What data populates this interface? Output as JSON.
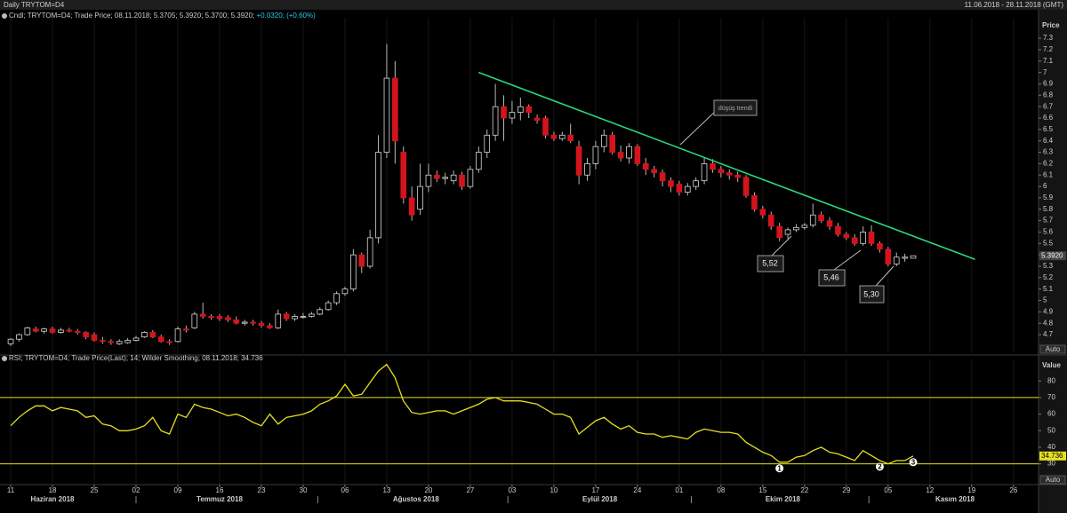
{
  "header": {
    "title": "Daily TRYTOM=D4",
    "date_range": "11.06.2018 - 28.11.2018 (GMT)"
  },
  "chart_data": [
    {
      "type": "candlestick",
      "legend": "Cndl; TRYTOM=D4; Trade Price; 08.11.2018; 5.3705; 5.3920; 5.3700; 5.3920;",
      "legend_change": "+0.0320; (+0.60%)",
      "axis_title": "Price",
      "scale_button": "Auto",
      "up_color": "#000000",
      "up_stroke": "#d8d8d8",
      "down_color": "#d4141c",
      "wick_color": "#b8b8b8",
      "xlim": [
        -1.28,
        123
      ],
      "ylim": [
        4.537,
        7.48
      ],
      "yticks": [
        7.3,
        7.2,
        7.1,
        7,
        6.9,
        6.8,
        6.7,
        6.6,
        6.5,
        6.4,
        6.3,
        6.2,
        6.1,
        6,
        5.9,
        5.8,
        5.7,
        5.6,
        5.5,
        5.4,
        5.3,
        5.2,
        5.1,
        5,
        4.9,
        4.8,
        4.7
      ],
      "last_price": 5.392,
      "last_price_label": "5.3920",
      "ohlc": [
        [
          4.62,
          4.67,
          4.6,
          4.66
        ],
        [
          4.66,
          4.71,
          4.64,
          4.7
        ],
        [
          4.7,
          4.77,
          4.69,
          4.76
        ],
        [
          4.75,
          4.77,
          4.72,
          4.73
        ],
        [
          4.73,
          4.76,
          4.71,
          4.75
        ],
        [
          4.75,
          4.77,
          4.71,
          4.72
        ],
        [
          4.72,
          4.76,
          4.71,
          4.74
        ],
        [
          4.74,
          4.76,
          4.72,
          4.73
        ],
        [
          4.73,
          4.75,
          4.7,
          4.72
        ],
        [
          4.72,
          4.73,
          4.66,
          4.68
        ],
        [
          4.7,
          4.72,
          4.64,
          4.65
        ],
        [
          4.65,
          4.68,
          4.62,
          4.64
        ],
        [
          4.64,
          4.66,
          4.61,
          4.63
        ],
        [
          4.62,
          4.66,
          4.61,
          4.64
        ],
        [
          4.63,
          4.67,
          4.62,
          4.65
        ],
        [
          4.65,
          4.69,
          4.64,
          4.67
        ],
        [
          4.68,
          4.73,
          4.67,
          4.72
        ],
        [
          4.72,
          4.74,
          4.67,
          4.68
        ],
        [
          4.68,
          4.7,
          4.63,
          4.64
        ],
        [
          4.64,
          4.66,
          4.61,
          4.63
        ],
        [
          4.64,
          4.77,
          4.63,
          4.75
        ],
        [
          4.75,
          4.78,
          4.72,
          4.74
        ],
        [
          4.76,
          4.9,
          4.75,
          4.88
        ],
        [
          4.88,
          4.98,
          4.84,
          4.86
        ],
        [
          4.86,
          4.88,
          4.83,
          4.85
        ],
        [
          4.86,
          4.88,
          4.82,
          4.84
        ],
        [
          4.85,
          4.87,
          4.81,
          4.83
        ],
        [
          4.83,
          4.86,
          4.79,
          4.8
        ],
        [
          4.8,
          4.83,
          4.78,
          4.81
        ],
        [
          4.81,
          4.83,
          4.78,
          4.8
        ],
        [
          4.8,
          4.82,
          4.76,
          4.78
        ],
        [
          4.78,
          4.8,
          4.75,
          4.76
        ],
        [
          4.76,
          4.92,
          4.75,
          4.88
        ],
        [
          4.88,
          4.9,
          4.82,
          4.84
        ],
        [
          4.84,
          4.88,
          4.82,
          4.86
        ],
        [
          4.86,
          4.89,
          4.84,
          4.86
        ],
        [
          4.86,
          4.9,
          4.85,
          4.88
        ],
        [
          4.88,
          4.94,
          4.87,
          4.92
        ],
        [
          4.92,
          5.0,
          4.91,
          4.98
        ],
        [
          4.98,
          5.08,
          4.96,
          5.06
        ],
        [
          5.06,
          5.12,
          5.04,
          5.1
        ],
        [
          5.1,
          5.45,
          5.08,
          5.4
        ],
        [
          5.4,
          5.42,
          5.24,
          5.3
        ],
        [
          5.3,
          5.62,
          5.28,
          5.55
        ],
        [
          5.55,
          6.45,
          5.5,
          6.3
        ],
        [
          6.3,
          7.25,
          6.25,
          6.95
        ],
        [
          6.95,
          7.1,
          6.2,
          6.4
        ],
        [
          6.3,
          6.35,
          5.85,
          5.9
        ],
        [
          5.9,
          6.0,
          5.7,
          5.75
        ],
        [
          5.8,
          6.2,
          5.75,
          6.0
        ],
        [
          6.0,
          6.2,
          5.95,
          6.1
        ],
        [
          6.1,
          6.14,
          6.04,
          6.07
        ],
        [
          6.07,
          6.12,
          6.02,
          6.08
        ],
        [
          6.05,
          6.14,
          6.02,
          6.1
        ],
        [
          6.1,
          6.13,
          5.97,
          6.0
        ],
        [
          6.0,
          6.18,
          5.98,
          6.15
        ],
        [
          6.15,
          6.35,
          6.12,
          6.3
        ],
        [
          6.3,
          6.5,
          6.25,
          6.45
        ],
        [
          6.45,
          6.9,
          6.4,
          6.7
        ],
        [
          6.7,
          6.8,
          6.4,
          6.6
        ],
        [
          6.6,
          6.75,
          6.55,
          6.65
        ],
        [
          6.65,
          6.78,
          6.58,
          6.7
        ],
        [
          6.7,
          6.72,
          6.6,
          6.65
        ],
        [
          6.6,
          6.63,
          6.55,
          6.58
        ],
        [
          6.6,
          6.62,
          6.42,
          6.45
        ],
        [
          6.45,
          6.48,
          6.4,
          6.42
        ],
        [
          6.42,
          6.48,
          6.4,
          6.45
        ],
        [
          6.45,
          6.55,
          6.38,
          6.4
        ],
        [
          6.35,
          6.4,
          6.02,
          6.1
        ],
        [
          6.1,
          6.25,
          6.05,
          6.2
        ],
        [
          6.2,
          6.4,
          6.15,
          6.35
        ],
        [
          6.35,
          6.5,
          6.3,
          6.45
        ],
        [
          6.45,
          6.48,
          6.28,
          6.3
        ],
        [
          6.3,
          6.36,
          6.22,
          6.25
        ],
        [
          6.25,
          6.38,
          6.2,
          6.35
        ],
        [
          6.35,
          6.37,
          6.18,
          6.2
        ],
        [
          6.2,
          6.25,
          6.1,
          6.15
        ],
        [
          6.15,
          6.18,
          6.08,
          6.12
        ],
        [
          6.12,
          6.15,
          6.0,
          6.05
        ],
        [
          6.05,
          6.08,
          5.95,
          6.0
        ],
        [
          6.02,
          6.05,
          5.92,
          5.95
        ],
        [
          5.95,
          6.03,
          5.92,
          6.0
        ],
        [
          6.0,
          6.08,
          5.97,
          6.05
        ],
        [
          6.05,
          6.25,
          6.02,
          6.2
        ],
        [
          6.2,
          6.24,
          6.12,
          6.15
        ],
        [
          6.15,
          6.18,
          6.08,
          6.12
        ],
        [
          6.12,
          6.15,
          6.06,
          6.1
        ],
        [
          6.1,
          6.13,
          6.04,
          6.08
        ],
        [
          6.08,
          6.1,
          5.9,
          5.92
        ],
        [
          5.92,
          5.95,
          5.78,
          5.8
        ],
        [
          5.8,
          5.83,
          5.72,
          5.75
        ],
        [
          5.75,
          5.78,
          5.62,
          5.65
        ],
        [
          5.65,
          5.68,
          5.52,
          5.55
        ],
        [
          5.58,
          5.64,
          5.54,
          5.62
        ],
        [
          5.62,
          5.67,
          5.6,
          5.64
        ],
        [
          5.64,
          5.68,
          5.62,
          5.66
        ],
        [
          5.66,
          5.85,
          5.64,
          5.75
        ],
        [
          5.75,
          5.78,
          5.68,
          5.7
        ],
        [
          5.7,
          5.73,
          5.62,
          5.65
        ],
        [
          5.65,
          5.68,
          5.56,
          5.58
        ],
        [
          5.58,
          5.6,
          5.53,
          5.55
        ],
        [
          5.55,
          5.58,
          5.48,
          5.5
        ],
        [
          5.5,
          5.65,
          5.48,
          5.6
        ],
        [
          5.6,
          5.66,
          5.48,
          5.5
        ],
        [
          5.5,
          5.52,
          5.42,
          5.45
        ],
        [
          5.45,
          5.47,
          5.3,
          5.32
        ],
        [
          5.32,
          5.42,
          5.3,
          5.38
        ],
        [
          5.37,
          5.41,
          5.34,
          5.38
        ],
        [
          5.3705,
          5.392,
          5.37,
          5.392
        ]
      ],
      "trendline": {
        "start": [
          56,
          7.0
        ],
        "end": [
          115.4,
          5.36
        ],
        "color": "#2bd67b"
      },
      "annotations": [
        "düşüş trendi",
        "5,52",
        "5,46",
        "5,30"
      ]
    },
    {
      "type": "line",
      "legend": "RSI; TRYTOM=D4; Trade Price(Last); 14; Wilder Smoothing; 08.11.2018; 34.736",
      "axis_title": "Value",
      "scale_button": "Auto",
      "color": "#e8e020",
      "xlim": [
        -1.28,
        123
      ],
      "ylim": [
        18,
        93
      ],
      "yticks": [
        80,
        70,
        60,
        50,
        40,
        30
      ],
      "levels": [
        70,
        30
      ],
      "values": [
        53,
        58,
        62,
        65,
        65,
        62,
        64,
        63,
        62,
        58,
        59,
        54,
        53,
        50,
        50,
        51,
        53,
        58,
        50,
        48,
        60,
        58,
        66,
        64,
        63,
        61,
        59,
        60,
        58,
        55,
        53,
        60,
        54,
        58,
        59,
        60,
        62,
        66,
        68,
        71,
        78,
        71,
        72,
        79,
        86,
        90,
        82,
        68,
        61,
        60,
        61,
        62,
        62,
        60,
        62,
        64,
        66,
        69,
        70,
        68,
        68,
        68,
        67,
        66,
        63,
        60,
        60,
        58,
        48,
        52,
        56,
        58,
        54,
        51,
        53,
        49,
        48,
        48,
        46,
        47,
        46,
        45,
        49,
        51,
        50,
        49,
        49,
        48,
        43,
        40,
        37,
        35,
        31,
        31,
        34,
        35,
        38,
        40,
        37,
        36,
        34,
        32,
        38,
        35,
        32,
        30,
        32,
        32,
        34.736
      ],
      "last_label": "34.736",
      "markers": [
        {
          "index": 92,
          "label": "1"
        },
        {
          "index": 104,
          "label": "2"
        },
        {
          "index": 108,
          "label": "3"
        }
      ],
      "xticks": [
        {
          "value": 0,
          "label": "11"
        },
        {
          "value": 5,
          "label": "18"
        },
        {
          "value": 10,
          "label": "25"
        },
        {
          "value": 15,
          "label": "02"
        },
        {
          "value": 20,
          "label": "09"
        },
        {
          "value": 25,
          "label": "16"
        },
        {
          "value": 30,
          "label": "23"
        },
        {
          "value": 35,
          "label": "30"
        },
        {
          "value": 40,
          "label": "06"
        },
        {
          "value": 45,
          "label": "13"
        },
        {
          "value": 50,
          "label": "20"
        },
        {
          "value": 55,
          "label": "27"
        },
        {
          "value": 60,
          "label": "03"
        },
        {
          "value": 65,
          "label": "10"
        },
        {
          "value": 70,
          "label": "17"
        },
        {
          "value": 75,
          "label": "24"
        },
        {
          "value": 80,
          "label": "01"
        },
        {
          "value": 85,
          "label": "08"
        },
        {
          "value": 90,
          "label": "15"
        },
        {
          "value": 95,
          "label": "22"
        },
        {
          "value": 100,
          "label": "29"
        },
        {
          "value": 105,
          "label": "05"
        },
        {
          "value": 110,
          "label": "12"
        },
        {
          "value": 115,
          "label": "19"
        },
        {
          "value": 120,
          "label": "26"
        }
      ],
      "month_labels": [
        {
          "value": 5,
          "label": "Haziran 2018"
        },
        {
          "value": 25,
          "label": "Temmuz 2018"
        },
        {
          "value": 48.5,
          "label": "Ağustos 2018"
        },
        {
          "value": 70.5,
          "label": "Eylül 2018"
        },
        {
          "value": 92.4,
          "label": "Ekim 2018"
        },
        {
          "value": 113,
          "label": "Kasım 2018"
        }
      ],
      "grid": true
    }
  ]
}
